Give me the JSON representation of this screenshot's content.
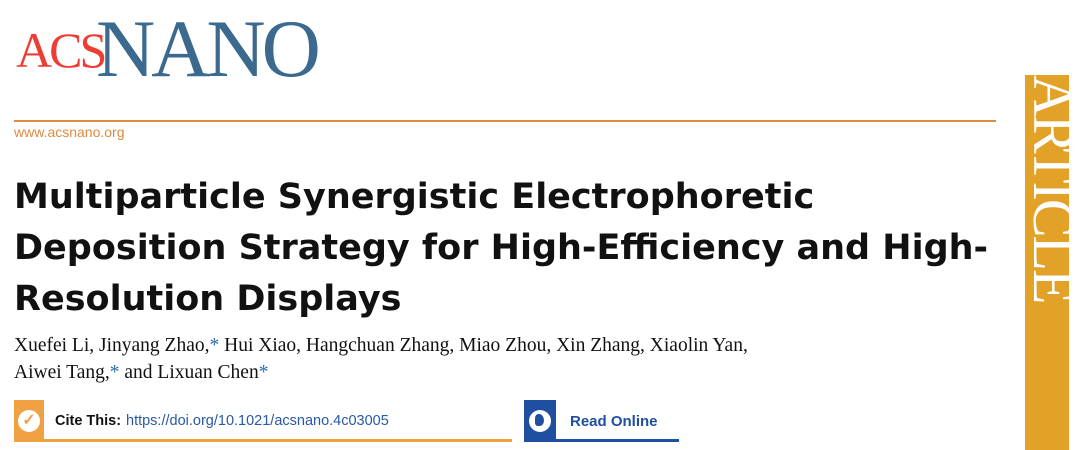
{
  "journal": {
    "logo_part1": "ACS",
    "logo_part2": "NANO",
    "website": "www.acsnano.org",
    "section_label": "ARTICLE"
  },
  "article": {
    "title": "Multiparticle Synergistic Electrophoretic Deposition Strategy for High-Efficiency and High-Resolution Displays",
    "authors_line1": "Xuefei Li, Jinyang Zhao,",
    "authors_line1b": " Hui Xiao, Hangchuan Zhang, Miao Zhou, Xin Zhang, Xiaolin Yan,",
    "authors_line2a": "Aiwei Tang,",
    "authors_line2b": " and Lixuan Chen",
    "corresponding_mark": "*"
  },
  "cite": {
    "label": "Cite This:",
    "doi": "https://doi.org/10.1021/acsnano.4c03005",
    "icon": "check-circle-icon"
  },
  "read_online": {
    "label": "Read Online",
    "icon": "globe-icon"
  },
  "colors": {
    "acs_red": "#ee3d35",
    "nano_blue": "#3b6a8e",
    "accent_orange": "#e08a3c",
    "sidebar_gold": "#e2a227",
    "link_blue": "#2859a5",
    "read_blue": "#1f4fa0"
  }
}
